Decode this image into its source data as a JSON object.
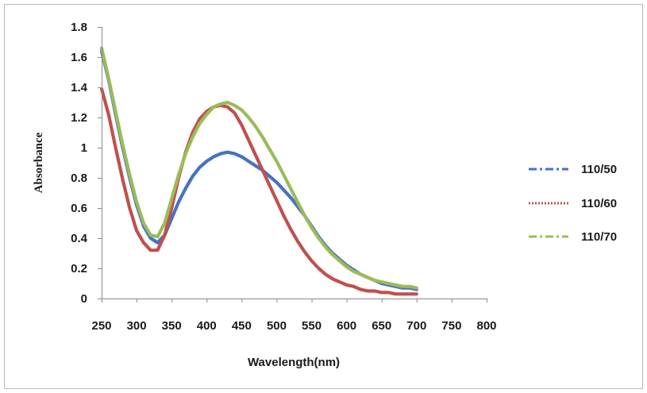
{
  "chart_data": {
    "type": "line",
    "title": "",
    "xlabel": "Wavelength(nm)",
    "ylabel": "Absorbance",
    "xlim": [
      250,
      800
    ],
    "ylim": [
      0,
      1.8
    ],
    "x_ticks": [
      "250",
      "300",
      "350",
      "400",
      "450",
      "500",
      "550",
      "600",
      "650",
      "700",
      "750",
      "800"
    ],
    "y_ticks": [
      "0",
      "0.2",
      "0.4",
      "0.6",
      "0.8",
      "1",
      "1.2",
      "1.4",
      "1.6",
      "1.8"
    ],
    "grid": false,
    "legend_position": "right",
    "series": [
      {
        "name": "110/50",
        "color": "#4472C4",
        "legend_style": "dash-dot",
        "x": [
          250,
          260,
          270,
          280,
          290,
          300,
          310,
          320,
          330,
          340,
          350,
          360,
          370,
          380,
          390,
          400,
          410,
          420,
          430,
          440,
          450,
          460,
          470,
          480,
          490,
          500,
          510,
          520,
          530,
          540,
          550,
          560,
          570,
          580,
          590,
          600,
          610,
          620,
          630,
          640,
          650,
          660,
          670,
          680,
          690,
          700
        ],
        "y": [
          1.64,
          1.45,
          1.22,
          1.0,
          0.8,
          0.62,
          0.48,
          0.4,
          0.37,
          0.42,
          0.53,
          0.64,
          0.73,
          0.81,
          0.87,
          0.91,
          0.94,
          0.96,
          0.97,
          0.96,
          0.94,
          0.91,
          0.88,
          0.85,
          0.81,
          0.77,
          0.72,
          0.67,
          0.61,
          0.55,
          0.48,
          0.41,
          0.35,
          0.3,
          0.26,
          0.22,
          0.19,
          0.16,
          0.14,
          0.12,
          0.1,
          0.09,
          0.08,
          0.07,
          0.07,
          0.06
        ]
      },
      {
        "name": "110/60",
        "color": "#C0504D",
        "legend_style": "dotted",
        "x": [
          250,
          260,
          270,
          280,
          290,
          300,
          310,
          320,
          330,
          340,
          350,
          360,
          370,
          380,
          390,
          400,
          410,
          420,
          430,
          440,
          450,
          460,
          470,
          480,
          490,
          500,
          510,
          520,
          530,
          540,
          550,
          560,
          570,
          580,
          590,
          600,
          610,
          620,
          630,
          640,
          650,
          660,
          670,
          680,
          690,
          700
        ],
        "y": [
          1.39,
          1.22,
          1.0,
          0.79,
          0.6,
          0.45,
          0.37,
          0.32,
          0.32,
          0.42,
          0.6,
          0.8,
          0.97,
          1.1,
          1.19,
          1.24,
          1.27,
          1.28,
          1.27,
          1.23,
          1.15,
          1.05,
          0.95,
          0.85,
          0.75,
          0.65,
          0.55,
          0.46,
          0.38,
          0.31,
          0.25,
          0.2,
          0.16,
          0.13,
          0.11,
          0.09,
          0.08,
          0.06,
          0.05,
          0.05,
          0.04,
          0.04,
          0.03,
          0.03,
          0.03,
          0.03
        ]
      },
      {
        "name": "110/70",
        "color": "#9BBB59",
        "legend_style": "dash-dot",
        "x": [
          250,
          260,
          270,
          280,
          290,
          300,
          310,
          320,
          330,
          340,
          350,
          360,
          370,
          380,
          390,
          400,
          410,
          420,
          430,
          440,
          450,
          460,
          470,
          480,
          490,
          500,
          510,
          520,
          530,
          540,
          550,
          560,
          570,
          580,
          590,
          600,
          610,
          620,
          630,
          640,
          650,
          660,
          670,
          680,
          690,
          700
        ],
        "y": [
          1.66,
          1.46,
          1.24,
          1.02,
          0.82,
          0.64,
          0.5,
          0.42,
          0.41,
          0.5,
          0.66,
          0.82,
          0.96,
          1.07,
          1.16,
          1.22,
          1.27,
          1.29,
          1.3,
          1.28,
          1.25,
          1.2,
          1.14,
          1.07,
          0.99,
          0.91,
          0.82,
          0.73,
          0.64,
          0.55,
          0.47,
          0.4,
          0.34,
          0.29,
          0.25,
          0.21,
          0.18,
          0.16,
          0.14,
          0.12,
          0.11,
          0.1,
          0.09,
          0.08,
          0.08,
          0.07
        ]
      }
    ]
  }
}
